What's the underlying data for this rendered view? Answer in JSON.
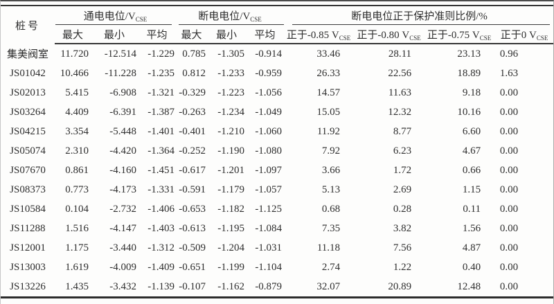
{
  "style": {
    "background": "#fdfdfc",
    "text_color": "#2d2d2d",
    "rule_color": "#353535",
    "frame_top_color": "#4a4a4a"
  },
  "table": {
    "corner_header": "桩号",
    "group_headers": [
      {
        "main": "通电电位/V",
        "subscript": "CSE"
      },
      {
        "main": "断电电位/V",
        "subscript": "CSE"
      },
      {
        "main": "断电电位正于保护准则比例/%"
      }
    ],
    "sub_headers": [
      {
        "main": "最大"
      },
      {
        "main": "最小"
      },
      {
        "main": "平均"
      },
      {
        "main": "最大"
      },
      {
        "main": "最小"
      },
      {
        "main": "平均"
      },
      {
        "main": "正于-0.85 V",
        "subscript": "CSE"
      },
      {
        "main": "正于-0.80 V",
        "subscript": "CSE"
      },
      {
        "main": "正于-0.75 V",
        "subscript": "CSE"
      },
      {
        "main": "正于0 V",
        "subscript": "CSE"
      }
    ],
    "rows": [
      {
        "pile": "集美阀室",
        "values": [
          "11.720",
          "-12.514",
          "-1.229",
          "0.785",
          "-1.305",
          "-0.914",
          "33.46",
          "28.11",
          "23.13",
          "0.96"
        ]
      },
      {
        "pile": "JS01042",
        "values": [
          "10.466",
          "-11.228",
          "-1.235",
          "0.812",
          "-1.233",
          "-0.959",
          "26.33",
          "22.56",
          "18.89",
          "1.63"
        ]
      },
      {
        "pile": "JS02013",
        "values": [
          "5.415",
          "-6.908",
          "-1.321",
          "-0.329",
          "-1.223",
          "-1.056",
          "14.57",
          "11.63",
          "9.18",
          "0.00"
        ]
      },
      {
        "pile": "JS03264",
        "values": [
          "4.409",
          "-6.391",
          "-1.387",
          "-0.263",
          "-1.234",
          "-1.049",
          "15.05",
          "12.32",
          "10.16",
          "0.00"
        ]
      },
      {
        "pile": "JS04215",
        "values": [
          "3.354",
          "-5.448",
          "-1.401",
          "-0.401",
          "-1.210",
          "-1.060",
          "11.92",
          "8.77",
          "6.60",
          "0.00"
        ]
      },
      {
        "pile": "JS05074",
        "values": [
          "2.310",
          "-4.420",
          "-1.364",
          "-0.252",
          "-1.190",
          "-1.080",
          "7.92",
          "6.23",
          "4.67",
          "0.00"
        ]
      },
      {
        "pile": "JS07670",
        "values": [
          "0.861",
          "-4.160",
          "-1.451",
          "-0.617",
          "-1.201",
          "-1.097",
          "3.66",
          "1.72",
          "0.66",
          "0.00"
        ]
      },
      {
        "pile": "JS08373",
        "values": [
          "0.773",
          "-4.173",
          "-1.331",
          "-0.591",
          "-1.179",
          "-1.057",
          "5.13",
          "2.69",
          "1.15",
          "0.00"
        ]
      },
      {
        "pile": "JS10584",
        "values": [
          "0.104",
          "-2.732",
          "-1.406",
          "-0.653",
          "-1.182",
          "-1.125",
          "0.68",
          "0.28",
          "0.11",
          "0.00"
        ]
      },
      {
        "pile": "JS11288",
        "values": [
          "1.516",
          "-4.147",
          "-1.403",
          "-0.613",
          "-1.195",
          "-1.084",
          "7.35",
          "3.82",
          "1.56",
          "0.00"
        ]
      },
      {
        "pile": "JS12001",
        "values": [
          "1.175",
          "-3.440",
          "-1.312",
          "-0.509",
          "-1.204",
          "-1.031",
          "11.18",
          "7.56",
          "4.87",
          "0.00"
        ]
      },
      {
        "pile": "JS13003",
        "values": [
          "1.619",
          "-4.009",
          "-1.409",
          "-0.651",
          "-1.199",
          "-1.104",
          "2.74",
          "1.22",
          "0.40",
          "0.00"
        ]
      },
      {
        "pile": "JS13226",
        "values": [
          "1.435",
          "-3.432",
          "-1.139",
          "-0.107",
          "-1.162",
          "-0.879",
          "32.07",
          "20.89",
          "12.48",
          "0.00"
        ]
      }
    ]
  }
}
